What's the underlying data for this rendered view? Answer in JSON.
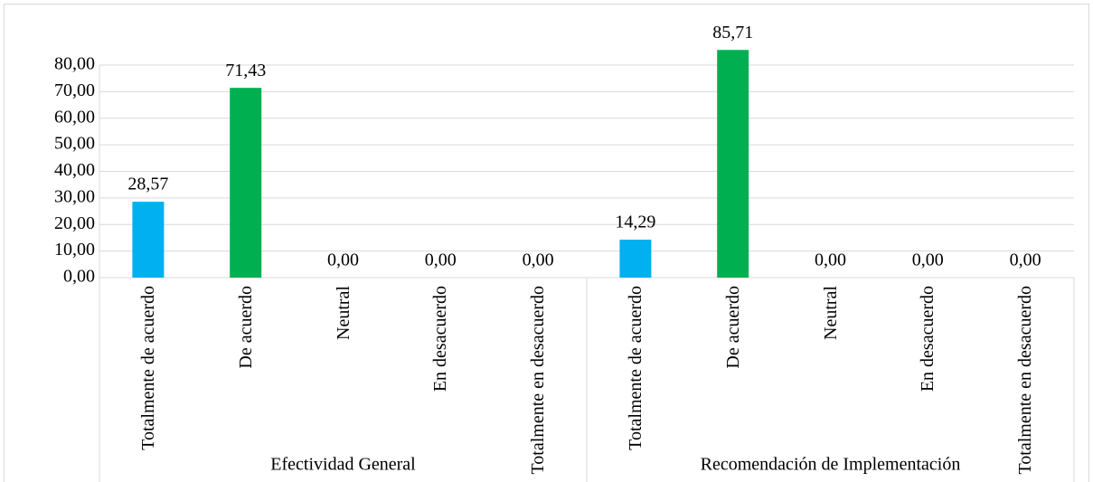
{
  "chart_data": {
    "type": "bar",
    "groups": [
      "Efectividad General",
      "Recomendación de Implementación"
    ],
    "categories": [
      "Totalmente de acuerdo",
      "De acuerdo",
      "Neutral",
      "En desacuerdo",
      "Totalmente en desacuerdo",
      "Totalmente de acuerdo",
      "De acuerdo",
      "Neutral",
      "En desacuerdo",
      "Totalmente en desacuerdo"
    ],
    "values": [
      28.57,
      71.43,
      0,
      0,
      0,
      14.29,
      85.71,
      0,
      0,
      0
    ],
    "value_labels": [
      "28,57",
      "71,43",
      "0,00",
      "0,00",
      "0,00",
      "14,29",
      "85,71",
      "0,00",
      "0,00",
      "0,00"
    ],
    "colors": [
      "#00b0f0",
      "#00b050",
      "#00b050",
      "#00b050",
      "#00b050",
      "#00b0f0",
      "#00b050",
      "#00b050",
      "#00b050",
      "#00b050"
    ],
    "ylim": [
      0,
      80
    ],
    "yticks": [
      {
        "value": 0,
        "label": "0,00"
      },
      {
        "value": 10,
        "label": "10,00"
      },
      {
        "value": 20,
        "label": "20,00"
      },
      {
        "value": 30,
        "label": "30,00"
      },
      {
        "value": 40,
        "label": "40,00"
      },
      {
        "value": 50,
        "label": "50,00"
      },
      {
        "value": 60,
        "label": "60,00"
      },
      {
        "value": 70,
        "label": "70,00"
      },
      {
        "value": 80,
        "label": "80,00"
      }
    ],
    "grid": true
  }
}
